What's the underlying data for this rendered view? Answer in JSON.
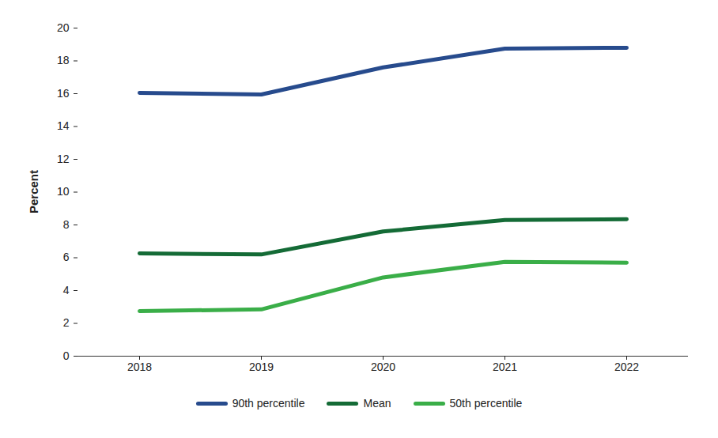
{
  "chart_data": {
    "type": "line",
    "y_label": "Percent",
    "categories": [
      "2018",
      "2019",
      "2020",
      "2021",
      "2022"
    ],
    "series": [
      {
        "name": "90th percentile",
        "color": "#274b8d",
        "values": [
          16.05,
          15.95,
          17.6,
          18.75,
          18.8
        ]
      },
      {
        "name": "Mean",
        "color": "#146b36",
        "values": [
          6.27,
          6.2,
          7.6,
          8.3,
          8.35
        ]
      },
      {
        "name": "50th percentile",
        "color": "#3aae48",
        "values": [
          2.75,
          2.85,
          4.8,
          5.75,
          5.7
        ]
      }
    ],
    "ylim": [
      0,
      20
    ],
    "yticks": [
      0,
      2,
      4,
      6,
      8,
      10,
      12,
      14,
      16,
      18,
      20
    ],
    "grid": false,
    "legend": "bottom"
  }
}
